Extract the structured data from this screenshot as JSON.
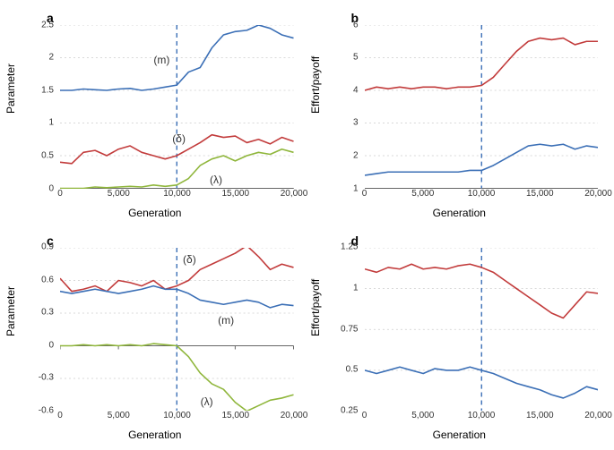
{
  "figure": {
    "background_color": "#ffffff",
    "grid_color": "#cccccc",
    "axis_color": "#666666",
    "font_family": "Arial",
    "panel_label_fontsize": 14,
    "axis_label_fontsize": 12,
    "tick_fontsize": 10,
    "vline_color": "#3b6fb6",
    "vline_dash": "5,4",
    "line_width": 1.6,
    "panels": [
      "a",
      "b",
      "c",
      "d"
    ]
  },
  "a": {
    "label": "a",
    "xlabel": "Generation",
    "ylabel": "Parameter",
    "xlim": [
      0,
      20000
    ],
    "ylim": [
      0,
      2.5
    ],
    "xtick_step": 5000,
    "xticks": [
      "0",
      "5,000",
      "10,000",
      "15,000",
      "20,000"
    ],
    "yticks": [
      0,
      0.5,
      1,
      1.5,
      2,
      2.5
    ],
    "vline_x": 10000,
    "series": [
      {
        "name": "m",
        "color": "#3b6fb6",
        "label": "(m)",
        "label_xy": [
          8000,
          1.95
        ],
        "x": [
          0,
          1000,
          2000,
          3000,
          4000,
          5000,
          6000,
          7000,
          8000,
          9000,
          10000,
          11000,
          12000,
          13000,
          14000,
          15000,
          16000,
          17000,
          18000,
          19000,
          20000
        ],
        "y": [
          1.5,
          1.5,
          1.52,
          1.51,
          1.5,
          1.52,
          1.53,
          1.5,
          1.52,
          1.55,
          1.58,
          1.78,
          1.85,
          2.15,
          2.35,
          2.4,
          2.42,
          2.5,
          2.45,
          2.35,
          2.3
        ]
      },
      {
        "name": "delta",
        "color": "#c23b3b",
        "label": "(δ)",
        "label_xy": [
          9600,
          0.75
        ],
        "x": [
          0,
          1000,
          2000,
          3000,
          4000,
          5000,
          6000,
          7000,
          8000,
          9000,
          10000,
          11000,
          12000,
          13000,
          14000,
          15000,
          16000,
          17000,
          18000,
          19000,
          20000
        ],
        "y": [
          0.4,
          0.38,
          0.55,
          0.58,
          0.5,
          0.6,
          0.65,
          0.55,
          0.5,
          0.45,
          0.5,
          0.6,
          0.7,
          0.82,
          0.78,
          0.8,
          0.7,
          0.75,
          0.68,
          0.78,
          0.72
        ]
      },
      {
        "name": "lambda",
        "color": "#8fb63b",
        "label": "(λ)",
        "label_xy": [
          12800,
          0.12
        ],
        "x": [
          0,
          1000,
          2000,
          3000,
          4000,
          5000,
          6000,
          7000,
          8000,
          9000,
          10000,
          11000,
          12000,
          13000,
          14000,
          15000,
          16000,
          17000,
          18000,
          19000,
          20000
        ],
        "y": [
          0,
          0,
          0,
          0.02,
          0.01,
          0.02,
          0.03,
          0.02,
          0.05,
          0.03,
          0.05,
          0.15,
          0.35,
          0.45,
          0.5,
          0.42,
          0.5,
          0.55,
          0.52,
          0.6,
          0.55
        ]
      }
    ]
  },
  "b": {
    "label": "b",
    "xlabel": "Generation",
    "ylabel": "Effort/payoff",
    "xlim": [
      0,
      20000
    ],
    "ylim": [
      1,
      6
    ],
    "xtick_step": 5000,
    "xticks": [
      "0",
      "5,000",
      "10,000",
      "15,000",
      "20,000"
    ],
    "yticks": [
      1,
      2,
      3,
      4,
      5,
      6
    ],
    "vline_x": 10000,
    "series": [
      {
        "name": "payoff",
        "color": "#c23b3b",
        "x": [
          0,
          1000,
          2000,
          3000,
          4000,
          5000,
          6000,
          7000,
          8000,
          9000,
          10000,
          11000,
          12000,
          13000,
          14000,
          15000,
          16000,
          17000,
          18000,
          19000,
          20000
        ],
        "y": [
          4.0,
          4.1,
          4.05,
          4.1,
          4.05,
          4.1,
          4.1,
          4.05,
          4.1,
          4.1,
          4.15,
          4.4,
          4.8,
          5.2,
          5.5,
          5.6,
          5.55,
          5.6,
          5.4,
          5.5,
          5.5
        ]
      },
      {
        "name": "effort",
        "color": "#3b6fb6",
        "x": [
          0,
          1000,
          2000,
          3000,
          4000,
          5000,
          6000,
          7000,
          8000,
          9000,
          10000,
          11000,
          12000,
          13000,
          14000,
          15000,
          16000,
          17000,
          18000,
          19000,
          20000
        ],
        "y": [
          1.4,
          1.45,
          1.5,
          1.5,
          1.5,
          1.5,
          1.5,
          1.5,
          1.5,
          1.55,
          1.55,
          1.7,
          1.9,
          2.1,
          2.3,
          2.35,
          2.3,
          2.35,
          2.2,
          2.3,
          2.25
        ]
      }
    ]
  },
  "c": {
    "label": "c",
    "xlabel": "Generation",
    "ylabel": "Parameter",
    "xlim": [
      0,
      20000
    ],
    "ylim": [
      -0.6,
      0.9
    ],
    "xtick_step": 5000,
    "xticks": [
      "0",
      "5,000",
      "10,000",
      "15,000",
      "20,000"
    ],
    "yticks": [
      -0.6,
      -0.3,
      0,
      0.3,
      0.6,
      0.9
    ],
    "vline_x": 10000,
    "series": [
      {
        "name": "delta",
        "color": "#c23b3b",
        "label": "(δ)",
        "label_xy": [
          10500,
          0.78
        ],
        "x": [
          0,
          1000,
          2000,
          3000,
          4000,
          5000,
          6000,
          7000,
          8000,
          9000,
          10000,
          11000,
          12000,
          13000,
          14000,
          15000,
          16000,
          17000,
          18000,
          19000,
          20000
        ],
        "y": [
          0.62,
          0.5,
          0.52,
          0.55,
          0.5,
          0.6,
          0.58,
          0.55,
          0.6,
          0.52,
          0.55,
          0.6,
          0.7,
          0.75,
          0.8,
          0.85,
          0.92,
          0.82,
          0.7,
          0.75,
          0.72
        ]
      },
      {
        "name": "m",
        "color": "#3b6fb6",
        "label": "(m)",
        "label_xy": [
          13500,
          0.22
        ],
        "x": [
          0,
          1000,
          2000,
          3000,
          4000,
          5000,
          6000,
          7000,
          8000,
          9000,
          10000,
          11000,
          12000,
          13000,
          14000,
          15000,
          16000,
          17000,
          18000,
          19000,
          20000
        ],
        "y": [
          0.5,
          0.48,
          0.5,
          0.52,
          0.5,
          0.48,
          0.5,
          0.52,
          0.55,
          0.52,
          0.52,
          0.48,
          0.42,
          0.4,
          0.38,
          0.4,
          0.42,
          0.4,
          0.35,
          0.38,
          0.37
        ]
      },
      {
        "name": "lambda",
        "color": "#8fb63b",
        "label": "(λ)",
        "label_xy": [
          12000,
          -0.52
        ],
        "x": [
          0,
          1000,
          2000,
          3000,
          4000,
          5000,
          6000,
          7000,
          8000,
          9000,
          10000,
          11000,
          12000,
          13000,
          14000,
          15000,
          16000,
          17000,
          18000,
          19000,
          20000
        ],
        "y": [
          0,
          0,
          0.01,
          0,
          0.01,
          0,
          0.01,
          0,
          0.02,
          0.01,
          0,
          -0.1,
          -0.25,
          -0.35,
          -0.4,
          -0.52,
          -0.6,
          -0.55,
          -0.5,
          -0.48,
          -0.45
        ]
      }
    ]
  },
  "d": {
    "label": "d",
    "xlabel": "Generation",
    "ylabel": "Effort/payoff",
    "xlim": [
      0,
      20000
    ],
    "ylim": [
      0.25,
      1.25
    ],
    "xtick_step": 5000,
    "xticks": [
      "0",
      "5,000",
      "10,000",
      "15,000",
      "20,000"
    ],
    "yticks": [
      0.25,
      0.5,
      0.75,
      1,
      1.25
    ],
    "zero_baseline_y": 0.25,
    "vline_x": 10000,
    "series": [
      {
        "name": "payoff",
        "color": "#c23b3b",
        "x": [
          0,
          1000,
          2000,
          3000,
          4000,
          5000,
          6000,
          7000,
          8000,
          9000,
          10000,
          11000,
          12000,
          13000,
          14000,
          15000,
          16000,
          17000,
          18000,
          19000,
          20000
        ],
        "y": [
          1.12,
          1.1,
          1.13,
          1.12,
          1.15,
          1.12,
          1.13,
          1.12,
          1.14,
          1.15,
          1.13,
          1.1,
          1.05,
          1.0,
          0.95,
          0.9,
          0.85,
          0.82,
          0.9,
          0.98,
          0.97
        ]
      },
      {
        "name": "effort",
        "color": "#3b6fb6",
        "x": [
          0,
          1000,
          2000,
          3000,
          4000,
          5000,
          6000,
          7000,
          8000,
          9000,
          10000,
          11000,
          12000,
          13000,
          14000,
          15000,
          16000,
          17000,
          18000,
          19000,
          20000
        ],
        "y": [
          0.5,
          0.48,
          0.5,
          0.52,
          0.5,
          0.48,
          0.51,
          0.5,
          0.5,
          0.52,
          0.5,
          0.48,
          0.45,
          0.42,
          0.4,
          0.38,
          0.35,
          0.33,
          0.36,
          0.4,
          0.38
        ]
      }
    ]
  }
}
